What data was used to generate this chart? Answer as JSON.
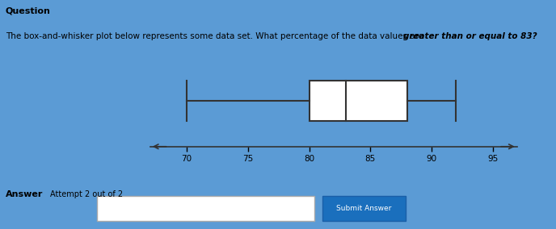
{
  "bg_color": "#5b9bd5",
  "question_text": "Question",
  "answer_label": "Answer",
  "attempt_text": "Attempt 2 out of 2",
  "submit_text": "Submit Answer",
  "box_whisker": {
    "min": 70,
    "q1": 80,
    "median": 83,
    "q3": 88,
    "max": 92
  },
  "axis_min": 67,
  "axis_max": 97,
  "x_ticks": [
    70,
    75,
    80,
    85,
    90,
    95
  ],
  "box_facecolor": "white",
  "box_edgecolor": "#333333"
}
